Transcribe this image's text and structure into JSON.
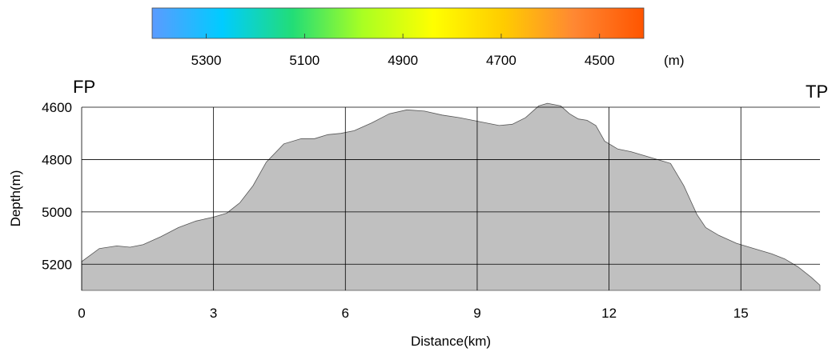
{
  "chart_data": {
    "type": "area",
    "title": "",
    "xlabel": "Distance(km)",
    "ylabel": "Depth(m)",
    "xlim": [
      0,
      16.8
    ],
    "ylim": [
      5300,
      4600
    ],
    "y_inverted": true,
    "xticks": [
      "0",
      "3",
      "6",
      "9",
      "12",
      "15"
    ],
    "yticks": [
      "4600",
      "4800",
      "5000",
      "5200"
    ],
    "grid": true,
    "fill_color": "#c0c0c0",
    "start_label": "FP",
    "end_label": "TP",
    "colorbar": {
      "labels": [
        "5300",
        "5100",
        "4900",
        "4700",
        "4500"
      ],
      "unit": "(m)",
      "range": [
        5410,
        4410
      ],
      "colors": [
        "#5b9bff",
        "#00ccff",
        "#22dd77",
        "#aaff22",
        "#ffff00",
        "#ffcc00",
        "#ff8833",
        "#ff5500"
      ]
    },
    "x": [
      0,
      0.4,
      0.8,
      1.1,
      1.4,
      1.8,
      2.2,
      2.6,
      3.0,
      3.3,
      3.6,
      3.9,
      4.2,
      4.6,
      5.0,
      5.3,
      5.6,
      5.9,
      6.2,
      6.6,
      7.0,
      7.4,
      7.8,
      8.2,
      8.6,
      8.9,
      9.2,
      9.5,
      9.8,
      10.1,
      10.4,
      10.6,
      10.9,
      11.1,
      11.3,
      11.5,
      11.7,
      11.9,
      12.2,
      12.5,
      12.8,
      13.1,
      13.4,
      13.7,
      14.0,
      14.2,
      14.5,
      14.9,
      15.3,
      15.7,
      16.0,
      16.3,
      16.6,
      16.8
    ],
    "y": [
      5190,
      5140,
      5130,
      5135,
      5125,
      5095,
      5060,
      5035,
      5020,
      5005,
      4965,
      4900,
      4810,
      4740,
      4720,
      4720,
      4705,
      4700,
      4690,
      4660,
      4625,
      4610,
      4615,
      4630,
      4640,
      4650,
      4660,
      4670,
      4665,
      4640,
      4595,
      4585,
      4595,
      4625,
      4645,
      4650,
      4670,
      4730,
      4760,
      4770,
      4785,
      4800,
      4815,
      4900,
      5010,
      5060,
      5090,
      5120,
      5140,
      5160,
      5180,
      5210,
      5250,
      5280
    ]
  }
}
